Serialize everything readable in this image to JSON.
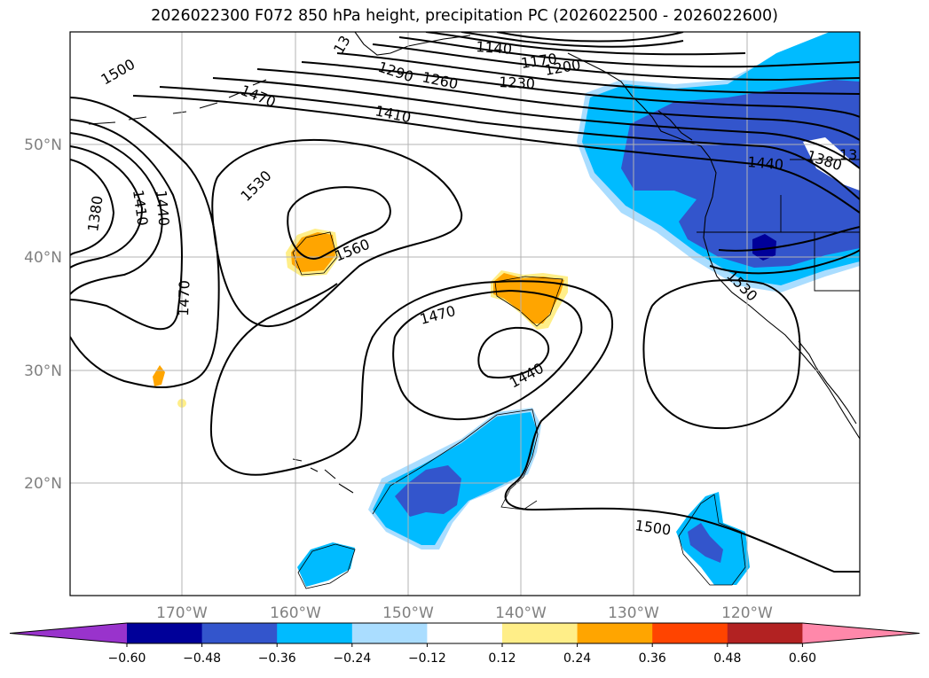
{
  "title": "2026022300 F072 850 hPa height, precipitation PC (2026022500 - 2026022600)",
  "lat_labels": [
    "50°N",
    "40°N",
    "30°N",
    "20°N"
  ],
  "lon_labels": [
    "170°W",
    "160°W",
    "150°W",
    "140°W",
    "130°W",
    "120°W"
  ],
  "colorbar": {
    "ticks": [
      "−0.60",
      "−0.48",
      "−0.36",
      "−0.24",
      "−0.12",
      "0.12",
      "0.24",
      "0.36",
      "0.48",
      "0.60"
    ],
    "colors": [
      "#9933cc",
      "#000099",
      "#3355cc",
      "#00bbff",
      "#aaddff",
      "#ffffff",
      "#ffee88",
      "#ffa500",
      "#ff4400",
      "#b22222",
      "#ff88aa"
    ]
  },
  "contour_labels": [
    "1500",
    "1470",
    "1410",
    "1380",
    "1410",
    "1440",
    "1470",
    "1530",
    "1560",
    "1470",
    "1440",
    "1500",
    "1530",
    "1440",
    "1380",
    "1290",
    "1260",
    "1230",
    "1140",
    "1170",
    "1200",
    "13",
    "13"
  ]
}
